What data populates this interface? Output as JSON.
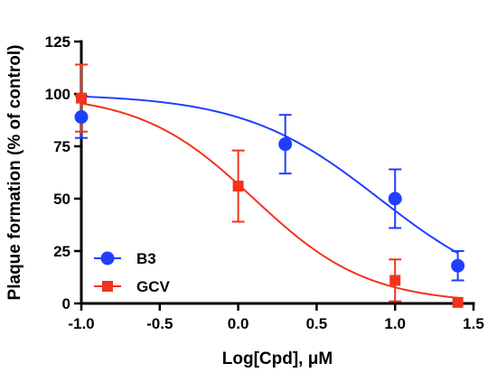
{
  "chart_data": {
    "type": "scatter",
    "title": "",
    "xlabel": "Log[Cpd], μM",
    "ylabel": "Plaque formation (% of control)",
    "xlim": [
      -1.0,
      1.5
    ],
    "ylim": [
      0,
      125
    ],
    "x_ticks": [
      "-1.0",
      "-0.5",
      "0.0",
      "0.5",
      "1.0",
      "1.5"
    ],
    "y_ticks": [
      "0",
      "25",
      "50",
      "75",
      "100",
      "125"
    ],
    "legend_position": "bottom-left",
    "grid": false,
    "series": [
      {
        "name": "B3",
        "color": "#1f3fff",
        "marker": "circle",
        "points": [
          {
            "x": -1.0,
            "y": 89,
            "err": 10
          },
          {
            "x": 0.3,
            "y": 76,
            "err": 14
          },
          {
            "x": 1.0,
            "y": 50,
            "err": 14
          },
          {
            "x": 1.4,
            "y": 18,
            "err": 7
          }
        ],
        "fit": {
          "top": 100,
          "bottom": 0,
          "logIC50": 0.9,
          "hill": 1.0
        }
      },
      {
        "name": "GCV",
        "color": "#f2331d",
        "marker": "square",
        "points": [
          {
            "x": -1.0,
            "y": 98,
            "err": 16
          },
          {
            "x": 0.0,
            "y": 56,
            "err": 17
          },
          {
            "x": 1.0,
            "y": 11,
            "err": 10
          },
          {
            "x": 1.4,
            "y": 0.5,
            "err": 0
          }
        ],
        "fit": {
          "top": 100,
          "bottom": 0,
          "logIC50": 0.1,
          "hill": 1.2
        }
      }
    ]
  }
}
